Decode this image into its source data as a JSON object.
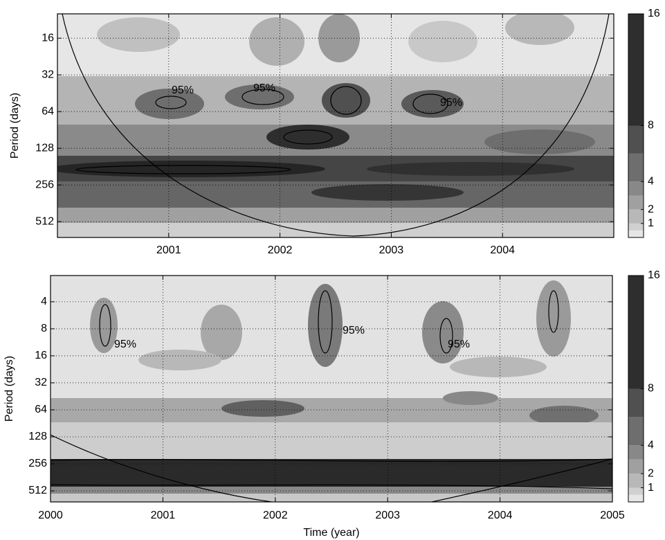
{
  "chart_data": [
    {
      "type": "wavelet",
      "ylabel": "Period (days)",
      "xlim": [
        2000,
        2005
      ],
      "xticks": [
        2001,
        2002,
        2003,
        2004
      ],
      "ylim": [
        10.1,
        690
      ],
      "yticks": [
        16,
        32,
        64,
        128,
        256,
        512
      ],
      "yscale": "log",
      "yreverse": true,
      "grid": true,
      "annotations": [
        "95%",
        "95%",
        "95%"
      ],
      "colorbar": {
        "lim": [
          0,
          16
        ],
        "ticks": [
          1,
          2,
          4,
          8,
          16
        ],
        "levels": [
          0,
          0.5,
          1,
          2,
          3,
          4,
          6,
          8,
          16
        ],
        "colors": [
          "#e6e6e6",
          "#d0d0d0",
          "#b8b8b8",
          "#a0a0a0",
          "#888888",
          "#6e6e6e",
          "#505050",
          "#2e2e2e"
        ]
      }
    },
    {
      "type": "wavelet",
      "ylabel": "Period (days)",
      "xlabel": "Time (year)",
      "xlim": [
        2000,
        2005
      ],
      "xticks": [
        2000,
        2001,
        2002,
        2003,
        2004,
        2005
      ],
      "ylim": [
        2.04,
        680
      ],
      "yticks": [
        4,
        8,
        16,
        32,
        64,
        128,
        256,
        512
      ],
      "yscale": "log",
      "yreverse": true,
      "grid": true,
      "annotations": [
        "95%",
        "95%",
        "95%"
      ],
      "colorbar": {
        "lim": [
          0,
          16
        ],
        "ticks": [
          1,
          2,
          4,
          8,
          16
        ],
        "levels": [
          0,
          0.5,
          1,
          2,
          3,
          4,
          6,
          8,
          16
        ],
        "colors": [
          "#e6e6e6",
          "#d0d0d0",
          "#b8b8b8",
          "#a0a0a0",
          "#888888",
          "#6e6e6e",
          "#505050",
          "#2e2e2e"
        ]
      }
    }
  ]
}
